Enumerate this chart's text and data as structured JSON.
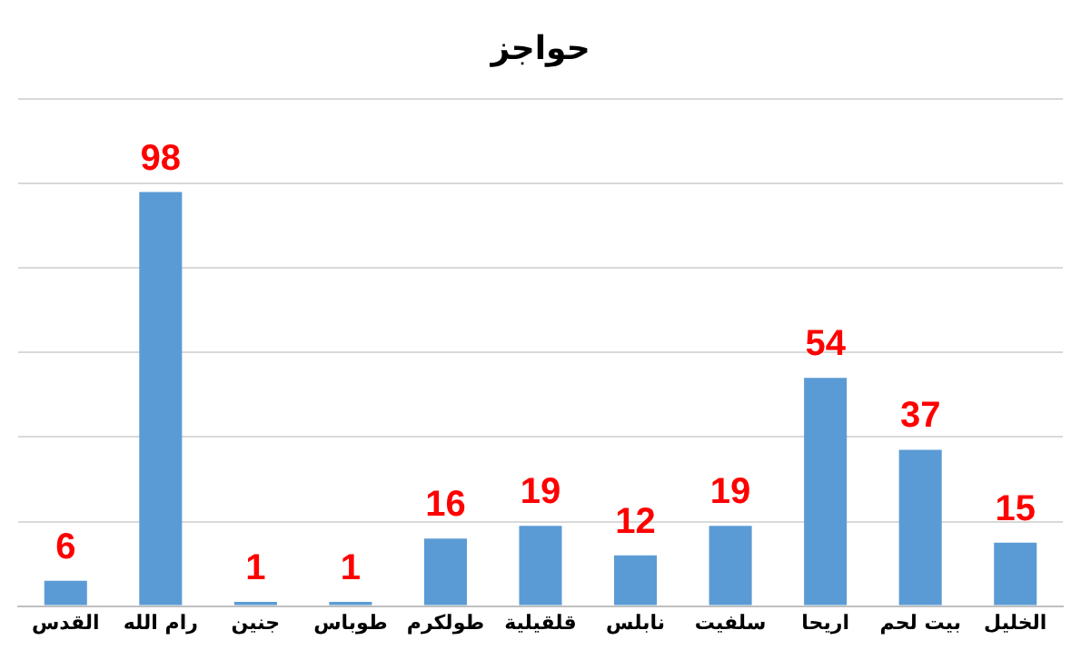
{
  "chart_data": {
    "type": "bar",
    "title": "حواجز",
    "categories": [
      "القدس",
      "رام الله",
      "جنين",
      "طوباس",
      "طولكرم",
      "قلقيلية",
      "نابلس",
      "سلفيت",
      "اريحا",
      "بيت لحم",
      "الخليل"
    ],
    "values": [
      6,
      98,
      1,
      1,
      16,
      19,
      12,
      19,
      54,
      37,
      15
    ],
    "color": "#5b9bd5",
    "ylim": [
      0,
      120
    ],
    "yticks": [
      {
        "value": 0,
        "label": null
      },
      {
        "value": 20,
        "label": null
      },
      {
        "value": 40,
        "label": null
      },
      {
        "value": 60,
        "label": null
      },
      {
        "value": 80,
        "label": null
      },
      {
        "value": 100,
        "label": null
      },
      {
        "value": 120,
        "label": null
      }
    ],
    "grid": "y",
    "tick_labels": "x",
    "data_labels": true
  }
}
